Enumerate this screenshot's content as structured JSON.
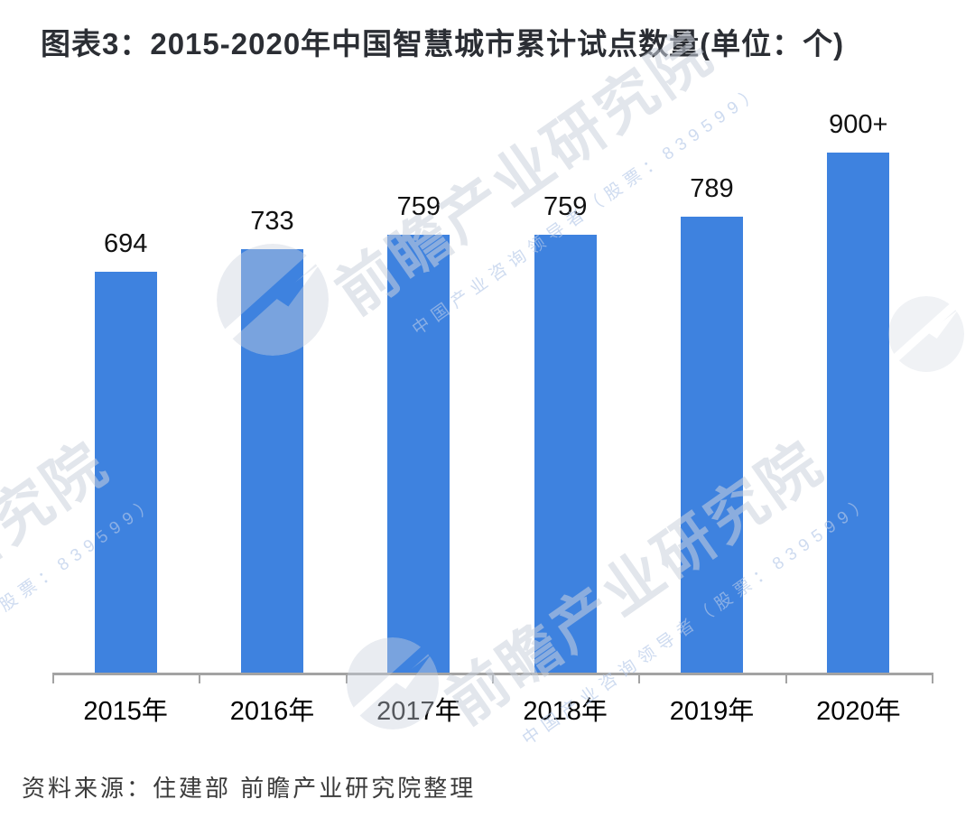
{
  "title": "图表3：2015-2020年中国智慧城市累计试点数量(单位：个)",
  "source": "资料来源：住建部 前瞻产业研究院整理",
  "watermark": {
    "big_text": "前瞻产业研究院",
    "small_text": "中国产业咨询领导者（股票：839599）"
  },
  "colors": {
    "bar": "#3E82DF",
    "axis": "#A3A3A3",
    "title_text": "#2B2E34",
    "value_label_text": "#111111",
    "source_text": "#3B3B3B",
    "watermark_gray": "rgba(203,209,221,0.55)",
    "watermark_blue": "rgba(180,200,232,0.65)",
    "watermark_circle": "rgba(203,209,221,0.42)"
  },
  "chart_data": {
    "type": "bar",
    "title": "2015-2020年中国智慧城市累计试点数量",
    "unit": "个",
    "categories": [
      "2015年",
      "2016年",
      "2017年",
      "2018年",
      "2019年",
      "2020年"
    ],
    "values": [
      694,
      733,
      759,
      759,
      789,
      900
    ],
    "value_labels": [
      "694",
      "733",
      "759",
      "759",
      "789",
      "900+"
    ],
    "xlabel": "",
    "ylabel": "",
    "ylim": [
      0,
      1030
    ],
    "grid": false,
    "legend": false,
    "y_axis_visible": false,
    "bar_color": "#3E82DF"
  }
}
